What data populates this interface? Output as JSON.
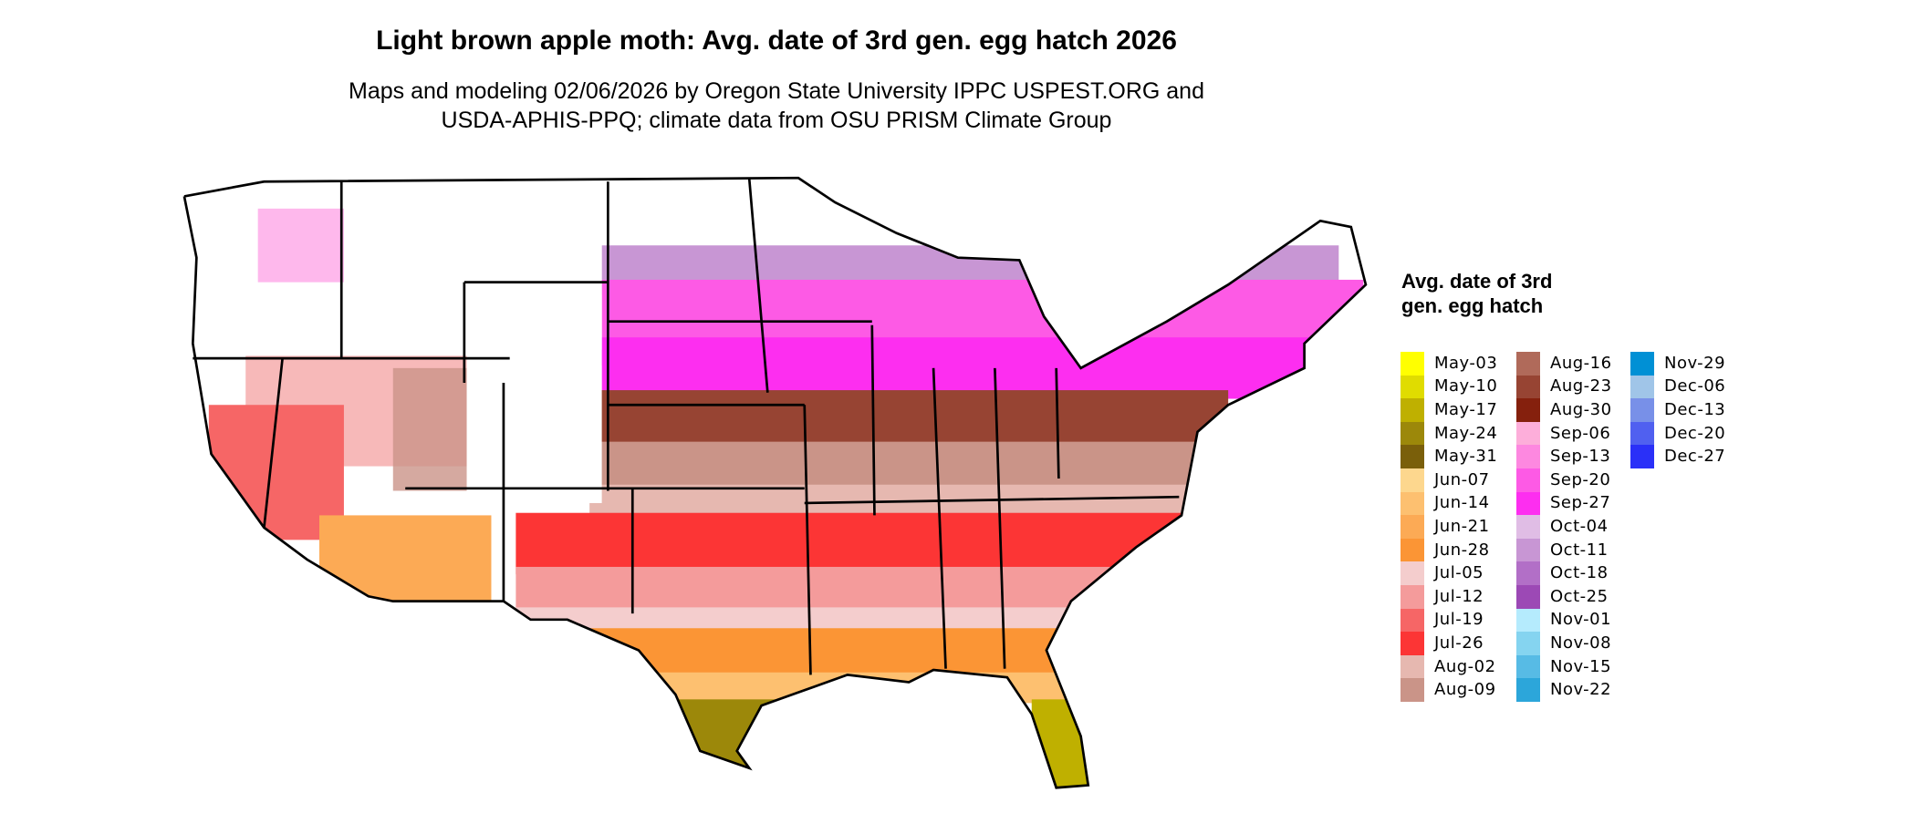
{
  "chart_data": {
    "type": "heatmap",
    "title": "Light brown apple moth: Avg. date of 3rd gen. egg hatch 2026",
    "subtitle_lines": [
      "Maps and modeling 02/06/2026 by Oregon State University IPPC USPEST.ORG and",
      "USDA-APHIS-PPQ; climate data from OSU PRISM Climate Group"
    ],
    "legend": {
      "title": "Avg. date of 3rd gen. egg hatch",
      "placement": "right",
      "items": [
        {
          "label": "May-03",
          "color": "#FFFF00"
        },
        {
          "label": "May-10",
          "color": "#E0DC00"
        },
        {
          "label": "May-17",
          "color": "#BFB000"
        },
        {
          "label": "May-24",
          "color": "#9C880A"
        },
        {
          "label": "May-31",
          "color": "#7A5F0A"
        },
        {
          "label": "Jun-07",
          "color": "#FDD78E"
        },
        {
          "label": "Jun-14",
          "color": "#FDC070"
        },
        {
          "label": "Jun-21",
          "color": "#FCAA55"
        },
        {
          "label": "Jun-28",
          "color": "#FB9535"
        },
        {
          "label": "Jul-05",
          "color": "#F4CDCD"
        },
        {
          "label": "Jul-12",
          "color": "#F49B9B"
        },
        {
          "label": "Jul-19",
          "color": "#F66666"
        },
        {
          "label": "Jul-26",
          "color": "#FC3535"
        },
        {
          "label": "Aug-02",
          "color": "#E6B8B0"
        },
        {
          "label": "Aug-09",
          "color": "#CA9488"
        },
        {
          "label": "Aug-16",
          "color": "#B06A5A"
        },
        {
          "label": "Aug-23",
          "color": "#974433"
        },
        {
          "label": "Aug-30",
          "color": "#85200D"
        },
        {
          "label": "Sep-06",
          "color": "#FDAEDA"
        },
        {
          "label": "Sep-13",
          "color": "#FD88E0"
        },
        {
          "label": "Sep-20",
          "color": "#FD5AE5"
        },
        {
          "label": "Sep-27",
          "color": "#FD2EF0"
        },
        {
          "label": "Oct-04",
          "color": "#E0BDE5"
        },
        {
          "label": "Oct-11",
          "color": "#C896D4"
        },
        {
          "label": "Oct-18",
          "color": "#B26FC7"
        },
        {
          "label": "Oct-25",
          "color": "#9C49B5"
        },
        {
          "label": "Nov-01",
          "color": "#B5EBFD"
        },
        {
          "label": "Nov-08",
          "color": "#85D4F0"
        },
        {
          "label": "Nov-15",
          "color": "#57BBE5"
        },
        {
          "label": "Nov-22",
          "color": "#2CA6DA"
        },
        {
          "label": "Nov-29",
          "color": "#0090D5"
        },
        {
          "label": "Dec-06",
          "color": "#A0C5E8"
        },
        {
          "label": "Dec-13",
          "color": "#7890E8"
        },
        {
          "label": "Dec-20",
          "color": "#5060F0"
        },
        {
          "label": "Dec-27",
          "color": "#2A30F8"
        }
      ]
    }
  }
}
